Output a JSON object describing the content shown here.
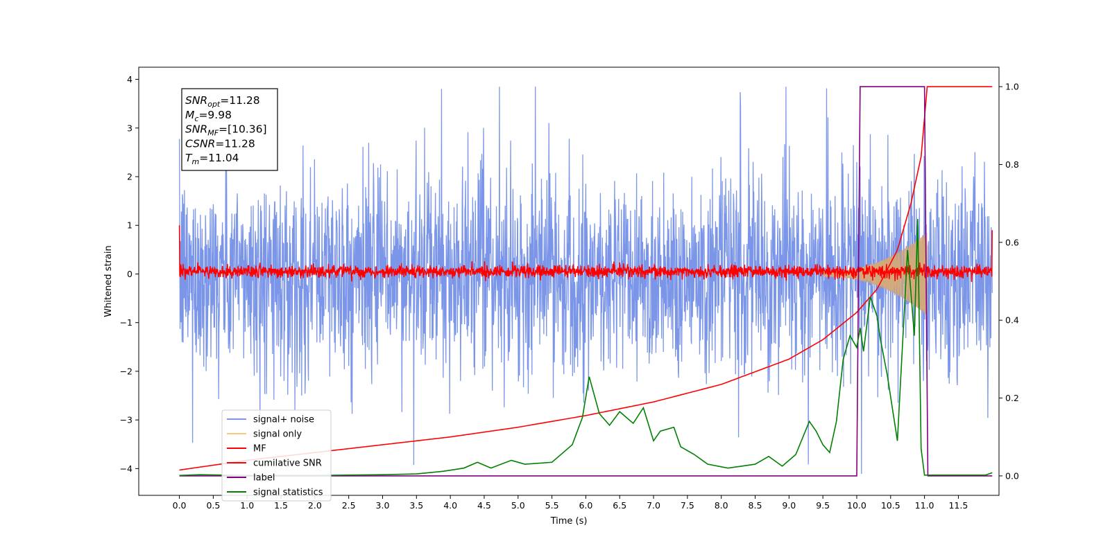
{
  "chart_data": {
    "type": "line",
    "xlabel": "Time (s)",
    "ylabel_left": "Whitened strain",
    "ylabel_right": "",
    "xlim": [
      -0.6,
      12.1
    ],
    "ylim_left": [
      -4.55,
      4.25
    ],
    "ylim_right": [
      -0.05,
      1.05
    ],
    "x_ticks": [
      "0.0",
      "0.5",
      "1.0",
      "1.5",
      "2.0",
      "2.5",
      "3.0",
      "3.5",
      "4.0",
      "4.5",
      "5.0",
      "5.5",
      "6.0",
      "6.5",
      "7.0",
      "7.5",
      "8.0",
      "8.5",
      "9.0",
      "9.5",
      "10.0",
      "10.5",
      "11.0",
      "11.5"
    ],
    "y_ticks_left": [
      "4",
      "3",
      "2",
      "1",
      "0",
      "−1",
      "−2",
      "−3",
      "−4"
    ],
    "y_ticks_right": [
      "1.0",
      "0.8",
      "0.6",
      "0.4",
      "0.2",
      "0.0"
    ],
    "grid": false,
    "legend_position": "lower-left",
    "annotation": {
      "lines": [
        {
          "sym": "SNR",
          "sub": "opt",
          "val": "=11.28"
        },
        {
          "sym": "M",
          "sub": "c",
          "val": "=9.98"
        },
        {
          "sym": "SNR",
          "sub": "MF",
          "val": "=[10.36]"
        },
        {
          "sym": "CSNR",
          "sub": "",
          "val": "=11.28"
        },
        {
          "sym": "T",
          "sub": "m",
          "val": "=11.04"
        }
      ]
    },
    "series": [
      {
        "name": "signal+ noise",
        "color": "#7b96e8",
        "axis": "left",
        "description_stats": {
          "x_start": 0.0,
          "x_end": 12.0,
          "mean": 0,
          "typical_peak": 2.5,
          "max": 3.85,
          "min": -4.15
        }
      },
      {
        "name": "signal only",
        "color": "#f7c77a",
        "axis": "left",
        "chirp": {
          "x_start": 9.5,
          "x_end": 11.04,
          "amp_start": 0.05,
          "amp_end": 0.85
        }
      },
      {
        "name": "MF",
        "color": "#ff0000",
        "axis": "left",
        "description_stats": {
          "x_start": 0.0,
          "x_end": 12.0,
          "mean": 0.05,
          "typical_peak": 0.15,
          "start_value": 1.0,
          "end_value": 0.9
        }
      },
      {
        "name": "cumilative SNR",
        "color": "#ff0000",
        "axis": "right",
        "x": [
          0.0,
          1.0,
          2.0,
          3.0,
          4.0,
          5.0,
          6.0,
          7.0,
          8.0,
          9.0,
          9.5,
          10.0,
          10.3,
          10.6,
          10.8,
          10.95,
          11.04,
          11.5,
          12.0
        ],
        "y": [
          0.015,
          0.04,
          0.06,
          0.08,
          0.1,
          0.125,
          0.155,
          0.19,
          0.235,
          0.3,
          0.35,
          0.42,
          0.48,
          0.58,
          0.7,
          0.82,
          1.0,
          1.0,
          1.0
        ]
      },
      {
        "name": "label",
        "color": "#800080",
        "axis": "right",
        "x": [
          0.0,
          10.0,
          10.05,
          11.0,
          11.05,
          12.0
        ],
        "y": [
          0.0,
          0.0,
          1.0,
          1.0,
          0.0,
          0.0
        ]
      },
      {
        "name": "signal statistics",
        "color": "#008000",
        "axis": "right",
        "x": [
          0.0,
          0.3,
          1.0,
          2.0,
          3.0,
          3.5,
          3.9,
          4.2,
          4.4,
          4.6,
          4.9,
          5.1,
          5.5,
          5.8,
          5.95,
          6.05,
          6.2,
          6.35,
          6.5,
          6.7,
          6.85,
          7.0,
          7.1,
          7.3,
          7.4,
          7.6,
          7.8,
          8.1,
          8.5,
          8.7,
          8.9,
          9.1,
          9.3,
          9.4,
          9.5,
          9.6,
          9.7,
          9.8,
          9.9,
          10.0,
          10.05,
          10.1,
          10.2,
          10.3,
          10.35,
          10.45,
          10.6,
          10.75,
          10.85,
          10.9,
          10.95,
          11.0,
          11.05,
          11.3,
          11.6,
          11.9,
          12.0
        ],
        "y": [
          0.001,
          0.003,
          0.001,
          0.001,
          0.003,
          0.005,
          0.012,
          0.02,
          0.035,
          0.02,
          0.04,
          0.03,
          0.035,
          0.08,
          0.15,
          0.255,
          0.16,
          0.13,
          0.165,
          0.135,
          0.175,
          0.09,
          0.115,
          0.125,
          0.075,
          0.055,
          0.03,
          0.02,
          0.03,
          0.05,
          0.025,
          0.055,
          0.14,
          0.115,
          0.08,
          0.06,
          0.14,
          0.3,
          0.36,
          0.33,
          0.38,
          0.32,
          0.46,
          0.41,
          0.35,
          0.26,
          0.09,
          0.58,
          0.36,
          0.66,
          0.07,
          0.002,
          0.002,
          0.002,
          0.002,
          0.002,
          0.008
        ]
      }
    ]
  }
}
